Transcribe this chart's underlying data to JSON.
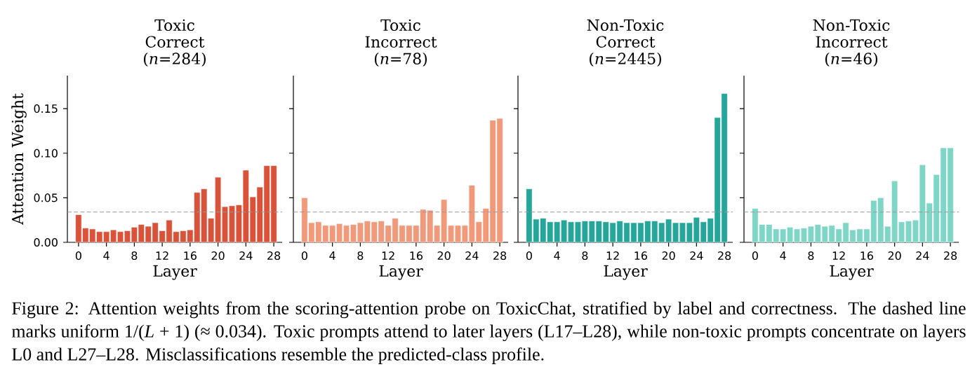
{
  "chart_data": [
    {
      "type": "bar",
      "title": "Toxic Correct",
      "subtitle": "(*n*=284)",
      "xlabel": "Layer",
      "ylabel": "Attention Weight",
      "color": "#d9533a",
      "x": [
        0,
        1,
        2,
        3,
        4,
        5,
        6,
        7,
        8,
        9,
        10,
        11,
        12,
        13,
        14,
        15,
        16,
        17,
        18,
        19,
        20,
        21,
        22,
        23,
        24,
        25,
        26,
        27,
        28
      ],
      "values": [
        0.031,
        0.016,
        0.015,
        0.012,
        0.012,
        0.014,
        0.012,
        0.013,
        0.017,
        0.02,
        0.018,
        0.022,
        0.013,
        0.025,
        0.012,
        0.013,
        0.014,
        0.056,
        0.06,
        0.027,
        0.073,
        0.04,
        0.041,
        0.042,
        0.081,
        0.051,
        0.062,
        0.086,
        0.086
      ],
      "xlim": [
        -1.6,
        29.2
      ],
      "ylim": [
        0,
        0.187
      ],
      "xticks": [
        0,
        4,
        8,
        12,
        16,
        20,
        24,
        28
      ],
      "yticks": [
        {
          "value": 0,
          "label": "0.00"
        },
        0.05,
        {
          "value": 0.1,
          "label": "0.10"
        },
        0.15
      ],
      "ref_lines": [
        {
          "axis": "y",
          "value": 0.034,
          "color": "#999999",
          "line_style": "dashed"
        }
      ],
      "annotations": [
        "Figure 2: Attention weights from the scoring-attention probe on ToxicChat, stratified by label and correctness. The dashed line marks uniform 1/(*L* + 1) (≈ 0.034). Toxic prompts attend to later layers (L17–L28), while non-toxic prompts concentrate on layers L0 and L27–L28. Misclassifications resemble the predicted-class profile."
      ]
    },
    {
      "type": "bar",
      "title": "Toxic Incorrect",
      "subtitle": "(*n*=78)",
      "xlabel": "Layer",
      "color": "#f0997b",
      "x": [
        0,
        1,
        2,
        3,
        4,
        5,
        6,
        7,
        8,
        9,
        10,
        11,
        12,
        13,
        14,
        15,
        16,
        17,
        18,
        19,
        20,
        21,
        22,
        23,
        24,
        25,
        26,
        27,
        28
      ],
      "values": [
        0.05,
        0.022,
        0.023,
        0.019,
        0.019,
        0.021,
        0.019,
        0.02,
        0.022,
        0.024,
        0.023,
        0.024,
        0.019,
        0.027,
        0.019,
        0.019,
        0.019,
        0.037,
        0.036,
        0.019,
        0.048,
        0.019,
        0.019,
        0.019,
        0.064,
        0.023,
        0.038,
        0.137,
        0.139
      ],
      "xlim": [
        -1.6,
        29.2
      ],
      "ylim": [
        0,
        0.187
      ],
      "xticks": [
        0,
        4,
        8,
        12,
        16,
        20,
        24,
        28
      ],
      "yticks": [
        0,
        0.05,
        0.1,
        0.15
      ],
      "tick_labels": "x",
      "ref_lines": [
        {
          "axis": "y",
          "value": 0.034,
          "color": "#999999",
          "line_style": "dashed"
        }
      ]
    },
    {
      "type": "bar",
      "title": "Non-Toxic Correct",
      "subtitle": "(*n*=2445)",
      "xlabel": "Layer",
      "color": "#26a69a",
      "x": [
        0,
        1,
        2,
        3,
        4,
        5,
        6,
        7,
        8,
        9,
        10,
        11,
        12,
        13,
        14,
        15,
        16,
        17,
        18,
        19,
        20,
        21,
        22,
        23,
        24,
        25,
        26,
        27,
        28
      ],
      "values": [
        0.06,
        0.026,
        0.027,
        0.023,
        0.023,
        0.025,
        0.023,
        0.023,
        0.024,
        0.024,
        0.024,
        0.023,
        0.022,
        0.024,
        0.022,
        0.022,
        0.022,
        0.024,
        0.024,
        0.022,
        0.026,
        0.022,
        0.022,
        0.022,
        0.028,
        0.023,
        0.027,
        0.14,
        0.167
      ],
      "xlim": [
        -1.6,
        29.2
      ],
      "ylim": [
        0,
        0.187
      ],
      "xticks": [
        0,
        4,
        8,
        12,
        16,
        20,
        24,
        28
      ],
      "yticks": [
        0,
        0.05,
        0.1,
        0.15
      ],
      "tick_labels": "x",
      "ref_lines": [
        {
          "axis": "y",
          "value": 0.034,
          "color": "#999999",
          "line_style": "dashed"
        }
      ]
    },
    {
      "type": "bar",
      "title": "Non-Toxic Incorrect",
      "subtitle": "(*n*=46)",
      "xlabel": "Layer",
      "color": "#7fd6c6",
      "x": [
        0,
        1,
        2,
        3,
        4,
        5,
        6,
        7,
        8,
        9,
        10,
        11,
        12,
        13,
        14,
        15,
        16,
        17,
        18,
        19,
        20,
        21,
        22,
        23,
        24,
        25,
        26,
        27,
        28
      ],
      "values": [
        0.038,
        0.02,
        0.02,
        0.015,
        0.015,
        0.017,
        0.015,
        0.016,
        0.018,
        0.02,
        0.018,
        0.019,
        0.015,
        0.022,
        0.014,
        0.015,
        0.015,
        0.047,
        0.05,
        0.018,
        0.069,
        0.023,
        0.024,
        0.025,
        0.087,
        0.044,
        0.076,
        0.106,
        0.106
      ],
      "xlim": [
        -1.6,
        29.2
      ],
      "ylim": [
        0,
        0.187
      ],
      "xticks": [
        0,
        4,
        8,
        12,
        16,
        20,
        24,
        28
      ],
      "yticks": [
        0,
        0.05,
        0.1,
        0.15
      ],
      "tick_labels": "x",
      "ref_lines": [
        {
          "axis": "y",
          "value": 0.034,
          "color": "#999999",
          "line_style": "dashed"
        }
      ]
    }
  ]
}
